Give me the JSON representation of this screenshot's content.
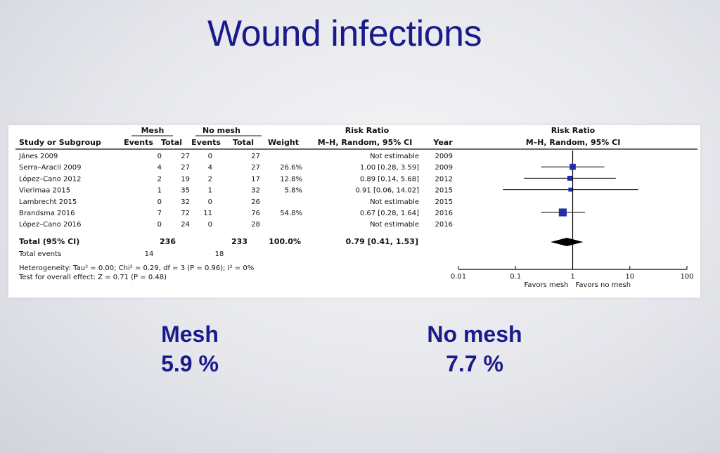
{
  "slide": {
    "title": "Wound infections",
    "mesh_label": "Mesh",
    "mesh_rate": "5.9 %",
    "nomesh_label": "No mesh",
    "nomesh_rate": "7.7 %"
  },
  "table": {
    "group_headers": {
      "mesh": "Mesh",
      "nomesh": "No mesh",
      "rr": "Risk Ratio",
      "plot": "Risk Ratio"
    },
    "col_headers": {
      "study": "Study or Subgroup",
      "events1": "Events",
      "total1": "Total",
      "events2": "Events",
      "total2": "Total",
      "weight": "Weight",
      "method": "M–H, Random, 95% CI",
      "year": "Year",
      "plot_method": "M–H, Random, 95% CI"
    },
    "studies": [
      {
        "name": "Jänes 2009",
        "e1": "0",
        "t1": "27",
        "e2": "0",
        "t2": "27",
        "weight": "",
        "rr_text": "Not estimable",
        "year": "2009"
      },
      {
        "name": "Serra–Aracil 2009",
        "e1": "4",
        "t1": "27",
        "e2": "4",
        "t2": "27",
        "weight": "26.6%",
        "rr_text": "1.00 [0.28, 3.59]",
        "year": "2009"
      },
      {
        "name": "López–Cano 2012",
        "e1": "2",
        "t1": "19",
        "e2": "2",
        "t2": "17",
        "weight": "12.8%",
        "rr_text": "0.89 [0.14, 5.68]",
        "year": "2012"
      },
      {
        "name": "Vierimaa 2015",
        "e1": "1",
        "t1": "35",
        "e2": "1",
        "t2": "32",
        "weight": "5.8%",
        "rr_text": "0.91 [0.06, 14.02]",
        "year": "2015"
      },
      {
        "name": "Lambrecht 2015",
        "e1": "0",
        "t1": "32",
        "e2": "0",
        "t2": "26",
        "weight": "",
        "rr_text": "Not estimable",
        "year": "2015"
      },
      {
        "name": "Brandsma 2016",
        "e1": "7",
        "t1": "72",
        "e2": "11",
        "t2": "76",
        "weight": "54.8%",
        "rr_text": "0.67 [0.28, 1.64]",
        "year": "2016"
      },
      {
        "name": "López–Cano 2016",
        "e1": "0",
        "t1": "24",
        "e2": "0",
        "t2": "28",
        "weight": "",
        "rr_text": "Not estimable",
        "year": "2016"
      }
    ],
    "total": {
      "name": "Total (95% CI)",
      "t1": "236",
      "t2": "233",
      "weight": "100.0%",
      "rr_text": "0.79 [0.41, 1.53]"
    },
    "total_events": {
      "label": "Total events",
      "e1": "14",
      "e2": "18"
    },
    "heterogeneity": "Heterogeneity: Tau² = 0.00; Chi² = 0.29, df = 3 (P = 0.96); I² = 0%",
    "overall_test": "Test for overall effect: Z = 0.71 (P = 0.48)"
  },
  "chart_data": {
    "type": "forest",
    "scale": "log",
    "xlim": [
      0.01,
      100
    ],
    "ticks": [
      {
        "value": 0.01,
        "label": "0.01"
      },
      {
        "value": 0.1,
        "label": "0.1"
      },
      {
        "value": 1,
        "label": "1"
      },
      {
        "value": 10,
        "label": "10"
      },
      {
        "value": 100,
        "label": "100"
      }
    ],
    "favors_left": "Favors mesh",
    "favors_right": "Favors no mesh",
    "studies": [
      {
        "name": "Serra–Aracil 2009",
        "rr": 1.0,
        "lo": 0.28,
        "hi": 3.59,
        "weight": 26.6,
        "row": 1
      },
      {
        "name": "López–Cano 2012",
        "rr": 0.89,
        "lo": 0.14,
        "hi": 5.68,
        "weight": 12.8,
        "row": 2
      },
      {
        "name": "Vierimaa 2015",
        "rr": 0.91,
        "lo": 0.06,
        "hi": 14.02,
        "weight": 5.8,
        "row": 3
      },
      {
        "name": "Brandsma 2016",
        "rr": 0.67,
        "lo": 0.28,
        "hi": 1.64,
        "weight": 54.8,
        "row": 5
      }
    ],
    "pooled": {
      "rr": 0.79,
      "lo": 0.41,
      "hi": 1.53
    },
    "colors": {
      "marker": "#1f2fa8",
      "diamond": "#000000",
      "line": "#000000"
    }
  }
}
